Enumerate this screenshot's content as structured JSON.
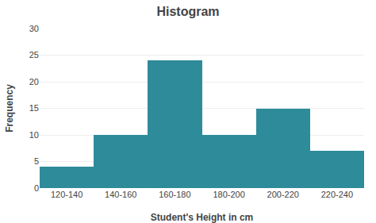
{
  "chart_data": {
    "type": "histogram",
    "title": "Histogram",
    "xlabel": "Student's Height in cm",
    "ylabel": "Frequency",
    "categories": [
      "120-140",
      "140-160",
      "160-180",
      "180-200",
      "200-220",
      "220-240"
    ],
    "values": [
      4,
      10,
      24,
      10,
      15,
      7
    ],
    "color": "#2E8B9A",
    "ylim": [
      0,
      30
    ],
    "yticks": [
      0,
      5,
      10,
      15,
      20,
      25,
      30
    ],
    "grid": true
  }
}
